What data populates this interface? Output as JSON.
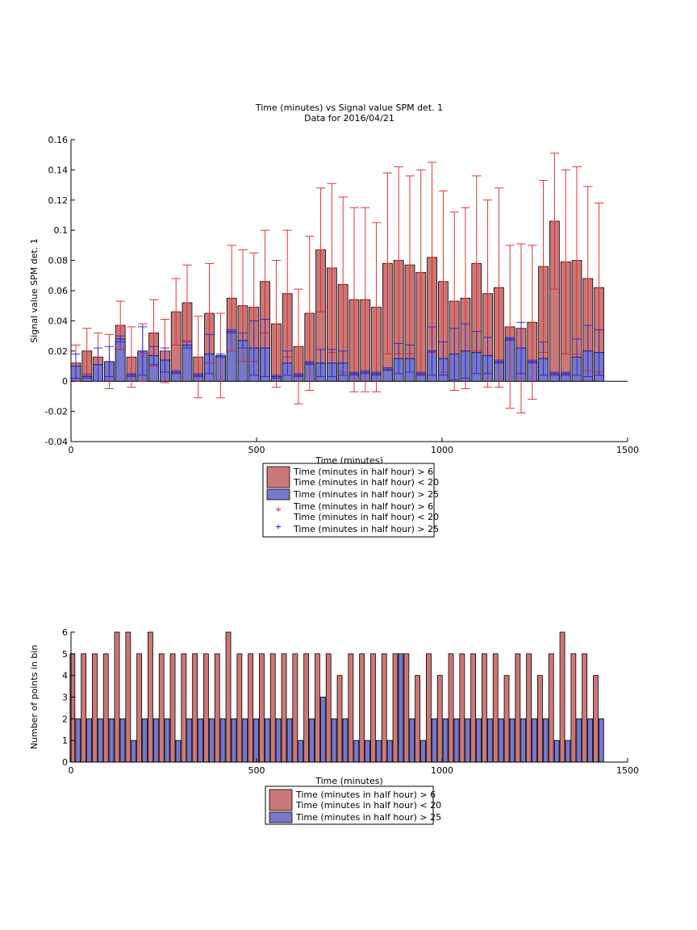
{
  "chart_data": [
    {
      "type": "bar",
      "title": [
        "Time (minutes) vs Signal value SPM det. 1",
        "Data for 2016/04/21"
      ],
      "xlabel": "Time (minutes)",
      "ylabel": "Signal value SPM det. 1",
      "xlim": [
        0,
        1500
      ],
      "ylim": [
        -0.04,
        0.16
      ],
      "xticks": [
        0,
        500,
        1000,
        1500
      ],
      "yticks": [
        -0.04,
        -0.02,
        0,
        0.02,
        0.04,
        0.06,
        0.08,
        0.1,
        0.12,
        0.14,
        0.16
      ],
      "legend_location": "below",
      "legend": [
        {
          "label": "Time (minutes in half hour) > 6\nTime (minutes in half hour) < 20",
          "symbol": "bar",
          "color": "#cc7777"
        },
        {
          "label": "Time (minutes in half hour) > 25",
          "symbol": "bar",
          "color": "#7777cc"
        },
        {
          "label": "Time (minutes in half hour) > 6\nTime (minutes in half hour) < 20",
          "symbol": "plus",
          "color": "#dd2222"
        },
        {
          "label": "Time (minutes in half hour) > 25",
          "symbol": "plus",
          "color": "#2222dd"
        }
      ],
      "series": [
        {
          "color": "#cc7777",
          "error_color": "#dd2222",
          "x": [
            13,
            43,
            73,
            103,
            133,
            163,
            193,
            223,
            253,
            283,
            313,
            343,
            373,
            403,
            433,
            463,
            493,
            523,
            553,
            583,
            613,
            643,
            673,
            703,
            733,
            763,
            793,
            823,
            853,
            883,
            913,
            943,
            973,
            1003,
            1033,
            1063,
            1093,
            1123,
            1153,
            1183,
            1213,
            1243,
            1273,
            1303,
            1333,
            1363,
            1393,
            1423
          ],
          "values": [
            0.012,
            0.02,
            0.016,
            0.013,
            0.037,
            0.016,
            0.019,
            0.032,
            0.02,
            0.046,
            0.052,
            0.016,
            0.045,
            0.017,
            0.055,
            0.05,
            0.049,
            0.066,
            0.038,
            0.058,
            0.023,
            0.045,
            0.087,
            0.075,
            0.064,
            0.054,
            0.054,
            0.049,
            0.078,
            0.08,
            0.077,
            0.072,
            0.082,
            0.066,
            0.053,
            0.055,
            0.078,
            0.058,
            0.062,
            0.036,
            0.035,
            0.039,
            0.076,
            0.106,
            0.079,
            0.08,
            0.068,
            0.062
          ],
          "error": [
            0.012,
            0.015,
            0.016,
            0.018,
            0.016,
            0.02,
            0.019,
            0.022,
            0.021,
            0.022,
            0.025,
            0.027,
            0.033,
            0.028,
            0.035,
            0.037,
            0.036,
            0.034,
            0.042,
            0.042,
            0.038,
            0.051,
            0.041,
            0.056,
            0.058,
            0.061,
            0.061,
            0.056,
            0.06,
            0.062,
            0.059,
            0.068,
            0.063,
            0.06,
            0.059,
            0.06,
            0.058,
            0.062,
            0.066,
            0.054,
            0.056,
            0.051,
            0.057,
            0.045,
            0.061,
            0.062,
            0.061,
            0.056
          ]
        },
        {
          "color": "#7777cc",
          "error_color": "#2222dd",
          "x": [
            13,
            43,
            73,
            103,
            133,
            163,
            193,
            223,
            253,
            283,
            313,
            343,
            373,
            403,
            433,
            463,
            493,
            523,
            553,
            583,
            613,
            643,
            673,
            703,
            733,
            763,
            793,
            823,
            853,
            883,
            913,
            943,
            973,
            1003,
            1033,
            1063,
            1093,
            1123,
            1153,
            1183,
            1213,
            1243,
            1273,
            1303,
            1333,
            1363,
            1393,
            1423
          ],
          "values": [
            0.01,
            0.003,
            0.011,
            0.013,
            0.028,
            0.004,
            0.02,
            0.017,
            0.014,
            0.006,
            0.024,
            0.004,
            0.018,
            0.017,
            0.033,
            0.027,
            0.022,
            0.022,
            0.003,
            0.012,
            0.004,
            0.012,
            0.012,
            0.012,
            0.012,
            0.005,
            0.006,
            0.005,
            0.008,
            0.015,
            0.015,
            0.005,
            0.02,
            0.015,
            0.018,
            0.02,
            0.019,
            0.017,
            0.013,
            0.028,
            0.022,
            0.013,
            0.015,
            0.005,
            0.005,
            0.016,
            0.02,
            0.019
          ],
          "error": [
            0.008,
            0.001,
            0.011,
            0.01,
            0.002,
            0.001,
            0.016,
            0.006,
            0.008,
            0.001,
            0.002,
            0.001,
            0.013,
            0.001,
            0.001,
            0.005,
            0.018,
            0.019,
            0.001,
            0.008,
            0.001,
            0.001,
            0.009,
            0.009,
            0.008,
            0.001,
            0.001,
            0.001,
            0.001,
            0.01,
            0.009,
            0.001,
            0.016,
            0.011,
            0.017,
            0.018,
            0.014,
            0.012,
            0.001,
            0.001,
            0.017,
            0.001,
            0.011,
            0.001,
            0.001,
            0.012,
            0.017,
            0.015
          ]
        }
      ]
    },
    {
      "type": "bar",
      "xlabel": "Time (minutes)",
      "ylabel": "Number of points in bin",
      "xlim": [
        0,
        1500
      ],
      "ylim": [
        0,
        6
      ],
      "xticks": [
        0,
        500,
        1000,
        1500
      ],
      "yticks": [
        0,
        1,
        2,
        3,
        4,
        5,
        6
      ],
      "legend_location": "below",
      "legend": [
        {
          "label": "Time (minutes in half hour) > 6\nTime (minutes in half hour) < 20",
          "symbol": "bar",
          "color": "#cc7777"
        },
        {
          "label": "Time (minutes in half hour) > 25",
          "symbol": "bar",
          "color": "#7777cc"
        }
      ],
      "series": [
        {
          "color": "#cc7777",
          "x": [
            4,
            34,
            64,
            94,
            124,
            154,
            184,
            214,
            244,
            274,
            304,
            334,
            364,
            394,
            424,
            454,
            484,
            514,
            544,
            574,
            604,
            634,
            664,
            694,
            724,
            754,
            784,
            814,
            844,
            874,
            904,
            934,
            964,
            994,
            1024,
            1054,
            1084,
            1114,
            1144,
            1174,
            1204,
            1234,
            1264,
            1294,
            1324,
            1354,
            1384,
            1414
          ],
          "values": [
            5,
            5,
            5,
            5,
            6,
            6,
            5,
            6,
            5,
            5,
            5,
            5,
            5,
            5,
            6,
            5,
            5,
            5,
            5,
            5,
            5,
            5,
            5,
            5,
            4,
            5,
            5,
            5,
            5,
            5,
            5,
            4,
            5,
            4,
            5,
            5,
            5,
            5,
            5,
            4,
            5,
            5,
            4,
            5,
            6,
            5,
            5,
            4
          ]
        },
        {
          "color": "#7777cc",
          "x": [
            19,
            49,
            79,
            109,
            139,
            169,
            199,
            229,
            259,
            289,
            319,
            349,
            379,
            409,
            439,
            469,
            499,
            529,
            559,
            589,
            619,
            649,
            679,
            709,
            739,
            769,
            799,
            829,
            859,
            889,
            919,
            949,
            979,
            1009,
            1039,
            1069,
            1099,
            1129,
            1159,
            1189,
            1219,
            1249,
            1279,
            1309,
            1339,
            1369,
            1399,
            1429
          ],
          "values": [
            2,
            2,
            2,
            2,
            2,
            1,
            2,
            2,
            2,
            1,
            2,
            2,
            2,
            2,
            2,
            2,
            2,
            2,
            2,
            2,
            1,
            2,
            3,
            2,
            2,
            1,
            1,
            1,
            1,
            5,
            2,
            1,
            2,
            2,
            2,
            2,
            2,
            2,
            2,
            2,
            2,
            2,
            2,
            1,
            1,
            2,
            2,
            2
          ]
        }
      ]
    }
  ]
}
